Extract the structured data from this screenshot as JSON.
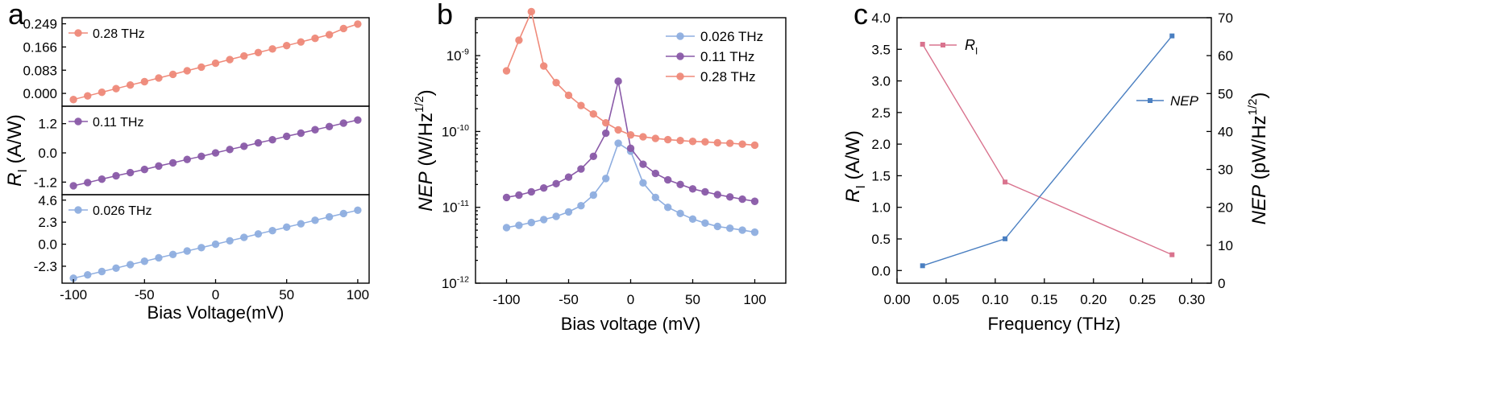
{
  "colors": {
    "orange": "#ef8a7a",
    "purple": "#8a5aa8",
    "blue": "#8faee0",
    "pink": "#d9738e",
    "steel": "#4a7fc1"
  },
  "chart_data": [
    {
      "panel": "a",
      "type": "line",
      "xlabel": "Bias Voltage(mV)",
      "ylabel_main": "R",
      "ylabel_sub": "I",
      "ylabel_unit": " (A/W)",
      "xlim": [
        -108,
        108
      ],
      "xticks": [
        -100,
        -50,
        0,
        50,
        100
      ],
      "x": [
        -100,
        -90,
        -80,
        -70,
        -60,
        -50,
        -40,
        -30,
        -20,
        -10,
        0,
        10,
        20,
        30,
        40,
        50,
        60,
        70,
        80,
        90,
        100
      ],
      "subplots": [
        {
          "name": "0.28 THz",
          "color_key": "orange",
          "ylim": [
            -0.04,
            0.265
          ],
          "yticks": [
            "0.249",
            "0.166",
            "0.083",
            "0.000"
          ],
          "ytick_values": [
            0.249,
            0.166,
            0.083,
            0.0
          ],
          "values": [
            -0.022,
            -0.009,
            0.004,
            0.017,
            0.03,
            0.042,
            0.055,
            0.068,
            0.081,
            0.094,
            0.108,
            0.121,
            0.134,
            0.146,
            0.159,
            0.171,
            0.184,
            0.197,
            0.21,
            0.232,
            0.248
          ]
        },
        {
          "name": "0.11 THz",
          "color_key": "purple",
          "ylim": [
            -1.65,
            1.85
          ],
          "yticks": [
            "1.2",
            "0.0",
            "-1.2"
          ],
          "ytick_values": [
            1.2,
            0.0,
            -1.2
          ],
          "values": [
            -1.35,
            -1.22,
            -1.08,
            -0.94,
            -0.81,
            -0.68,
            -0.54,
            -0.41,
            -0.27,
            -0.14,
            0.0,
            0.14,
            0.27,
            0.41,
            0.54,
            0.68,
            0.81,
            0.95,
            1.08,
            1.22,
            1.35
          ]
        },
        {
          "name": "0.026 THz",
          "color_key": "blue",
          "ylim": [
            -3.9,
            5.0
          ],
          "yticks": [
            "4.6",
            "2.3",
            "0.0",
            "-2.3"
          ],
          "ytick_values": [
            4.6,
            2.3,
            0.0,
            -2.3
          ],
          "values": [
            -3.55,
            -3.2,
            -2.85,
            -2.5,
            -2.13,
            -1.78,
            -1.42,
            -1.07,
            -0.71,
            -0.36,
            0.0,
            0.36,
            0.71,
            1.07,
            1.42,
            1.78,
            2.13,
            2.5,
            2.85,
            3.2,
            3.55
          ]
        }
      ]
    },
    {
      "panel": "b",
      "type": "line",
      "yscale": "log",
      "xlabel": "Bias voltage (mV)",
      "ylabel_main": "NEP",
      "ylabel_unit": " (W/Hz",
      "ylabel_sup": "1/2",
      "ylabel_close": ")",
      "xlim": [
        -125,
        125
      ],
      "xticks": [
        -100,
        -50,
        0,
        50,
        100
      ],
      "ylim_log10": [
        -12,
        -8.5
      ],
      "yticks": [
        {
          "exp": -9,
          "label": "10",
          "sup": "-9"
        },
        {
          "exp": -10,
          "label": "10",
          "sup": "-10"
        },
        {
          "exp": -11,
          "label": "10",
          "sup": "-11"
        },
        {
          "exp": -12,
          "label": "10",
          "sup": "-12"
        }
      ],
      "x": [
        -100,
        -90,
        -80,
        -70,
        -60,
        -50,
        -40,
        -30,
        -20,
        -10,
        0,
        10,
        20,
        30,
        40,
        50,
        60,
        70,
        80,
        90,
        100
      ],
      "series": [
        {
          "name": "0.026 THz",
          "color_key": "blue",
          "values": [
            5.4e-12,
            5.8e-12,
            6.3e-12,
            6.9e-12,
            7.6e-12,
            8.7e-12,
            1.05e-11,
            1.45e-11,
            2.4e-11,
            7e-11,
            5.5e-11,
            2.1e-11,
            1.35e-11,
            1e-11,
            8.3e-12,
            7e-12,
            6.2e-12,
            5.6e-12,
            5.3e-12,
            5e-12,
            4.7e-12
          ]
        },
        {
          "name": "0.11 THz",
          "color_key": "purple",
          "values": [
            1.35e-11,
            1.45e-11,
            1.6e-11,
            1.8e-11,
            2.05e-11,
            2.5e-11,
            3.2e-11,
            4.7e-11,
            9.5e-11,
            4.6e-10,
            6e-11,
            3.7e-11,
            2.8e-11,
            2.3e-11,
            2e-11,
            1.75e-11,
            1.6e-11,
            1.47e-11,
            1.37e-11,
            1.28e-11,
            1.2e-11
          ]
        },
        {
          "name": "0.28 THz",
          "color_key": "orange",
          "values": [
            6.3e-10,
            1.6e-09,
            3.8e-09,
            7.3e-10,
            4.4e-10,
            3e-10,
            2.2e-10,
            1.7e-10,
            1.3e-10,
            1.05e-10,
            9e-11,
            8.5e-11,
            8.1e-11,
            7.8e-11,
            7.6e-11,
            7.4e-11,
            7.3e-11,
            7.1e-11,
            7e-11,
            6.8e-11,
            6.6e-11
          ]
        }
      ]
    },
    {
      "panel": "c",
      "type": "line",
      "xlabel": "Frequency (THz)",
      "ylabel_left_main": "R",
      "ylabel_left_sub": "I",
      "ylabel_left_unit": " (A/W)",
      "ylabel_right_main": "NEP",
      "ylabel_right_unit": " (pW/Hz",
      "ylabel_right_sup": "1/2",
      "ylabel_right_close": ")",
      "xlim": [
        0.0,
        0.32
      ],
      "xticks": [
        "0.00",
        "0.05",
        "0.10",
        "0.15",
        "0.20",
        "0.25",
        "0.30"
      ],
      "xtick_values": [
        0.0,
        0.05,
        0.1,
        0.15,
        0.2,
        0.25,
        0.3
      ],
      "ylim_left": [
        -0.2,
        4.0
      ],
      "yticks_left": [
        "0.0",
        "0.5",
        "1.0",
        "1.5",
        "2.0",
        "2.5",
        "3.0",
        "3.5",
        "4.0"
      ],
      "ytick_values_left": [
        0.0,
        0.5,
        1.0,
        1.5,
        2.0,
        2.5,
        3.0,
        3.5,
        4.0
      ],
      "ylim_right": [
        0,
        70
      ],
      "yticks_right": [
        "0",
        "10",
        "20",
        "30",
        "40",
        "50",
        "60",
        "70"
      ],
      "ytick_values_right": [
        0,
        10,
        20,
        30,
        40,
        50,
        60,
        70
      ],
      "x": [
        0.026,
        0.11,
        0.28
      ],
      "series": [
        {
          "name_main": "R",
          "name_sub": "I",
          "axis": "left",
          "color_key": "pink",
          "values": [
            3.58,
            1.4,
            0.25
          ]
        },
        {
          "name_main": "NEP",
          "axis": "right",
          "color_key": "steel",
          "values": [
            4.6,
            11.7,
            65.2
          ]
        }
      ]
    }
  ]
}
